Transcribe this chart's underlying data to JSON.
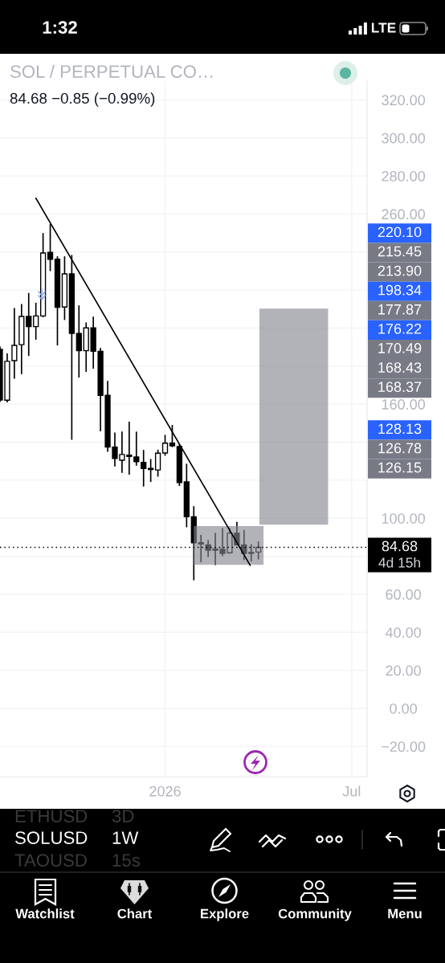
{
  "chart_data": {
    "type": "candlestick",
    "title": "SOL / PERPETUAL CO…",
    "subtitle": "84.68 −0.85 (−0.99%)",
    "x": [
      "2025-07-28",
      "2025-08-04",
      "2025-08-11",
      "2025-08-18",
      "2025-08-25",
      "2025-09-01",
      "2025-09-08",
      "2025-09-15",
      "2025-09-22",
      "2025-09-29",
      "2025-10-06",
      "2025-10-13",
      "2025-10-20",
      "2025-10-27",
      "2025-11-03",
      "2025-11-10",
      "2025-11-17",
      "2025-11-24",
      "2025-12-01",
      "2025-12-08",
      "2025-12-15",
      "2025-12-22",
      "2025-12-29",
      "2026-01-05",
      "2026-01-12",
      "2026-01-19",
      "2026-01-26",
      "2026-02-02",
      "2026-02-09",
      "2026-02-16",
      "2026-02-23",
      "2026-03-02",
      "2026-03-09",
      "2026-03-16",
      "2026-03-23",
      "2026-03-30",
      "2026-04-06"
    ],
    "ohlc": [
      [
        188.8,
        190.0,
        161.5,
        162.2
      ],
      [
        162.1,
        186.3,
        161.3,
        182.5
      ],
      [
        182.9,
        210.2,
        173.7,
        190.9
      ],
      [
        191.3,
        212.3,
        176.1,
        206.1
      ],
      [
        206.1,
        218.1,
        185.7,
        200.8
      ],
      [
        200.8,
        213.0,
        194.2,
        206.4
      ],
      [
        206.4,
        249.6,
        206.0,
        239.5
      ],
      [
        239.8,
        254.3,
        230.3,
        236.2
      ],
      [
        236.2,
        237.4,
        191.2,
        210.9
      ],
      [
        211.1,
        237.4,
        204.6,
        228.5
      ],
      [
        228.5,
        238.1,
        141.6,
        197.2
      ],
      [
        197.2,
        211.6,
        174.3,
        188.1
      ],
      [
        188.1,
        202.6,
        177.3,
        200.1
      ],
      [
        200.1,
        205.7,
        179.0,
        187.8
      ],
      [
        187.8,
        189.2,
        146.1,
        164.6
      ],
      [
        164.6,
        171.9,
        135.3,
        137.4
      ],
      [
        137.4,
        144.7,
        127.6,
        131.4
      ],
      [
        130.5,
        145.3,
        124.2,
        133.5
      ],
      [
        133.2,
        150.4,
        123.3,
        132.5
      ],
      [
        132.2,
        145.2,
        128.0,
        129.7
      ],
      [
        129.4,
        135.6,
        117.0,
        126.2
      ],
      [
        126.2,
        130.8,
        119.4,
        125.6
      ],
      [
        125.4,
        135.7,
        122.2,
        134.2
      ],
      [
        134.3,
        143.5,
        133.2,
        139.5
      ],
      [
        139.5,
        148.7,
        137.7,
        138.1
      ],
      [
        137.7,
        138.5,
        117.3,
        118.8
      ],
      [
        119.1,
        128.3,
        95.6,
        100.8
      ],
      [
        100.8,
        106.0,
        67.7,
        87.1
      ],
      [
        87.1,
        90.9,
        77.2,
        86.5
      ],
      [
        86.0,
        88.1,
        80.0,
        83.2
      ],
      [
        83.9,
        91.9,
        75.7,
        83.2
      ],
      [
        83.6,
        94.5,
        80.4,
        81.5
      ],
      [
        81.8,
        94.5,
        81.8,
        92.1
      ],
      [
        92.1,
        97.7,
        86.0,
        86.0
      ],
      [
        86.0,
        93.5,
        78.3,
        81.5
      ],
      [
        81.5,
        86.0,
        77.6,
        82.0
      ],
      [
        82.2,
        87.4,
        78.7,
        84.68
      ]
    ],
    "color": "#000000",
    "series": [
      {
        "type": "line",
        "x": [
          "2026-04-07",
          "2026-06-13"
        ],
        "values": [
          null,
          null
        ],
        "lower": [
          96.6,
          96.6
        ],
        "upper": [
          210.2,
          210.2
        ],
        "color": "#b2b3b8"
      },
      {
        "type": "line",
        "x": [
          "2026-02-02",
          "2026-04-11"
        ],
        "values": [
          null,
          null
        ],
        "lower": [
          75.5,
          75.5
        ],
        "upper": [
          95.9,
          95.9
        ],
        "color": "#b2b3b8"
      },
      {
        "type": "line",
        "x": [
          "2025-09-01",
          "2026-03-29"
        ],
        "values": [
          268.3,
          75.2
        ],
        "color": "#000000"
      }
    ],
    "ref_lines": [
      {
        "axis": "y",
        "value": 84.68,
        "label": "84.68",
        "color": "#000000",
        "line_style": "dotted"
      }
    ],
    "xlim": [
      "2025-07-28",
      "2026-07-21"
    ],
    "ylim": [
      -36,
      330
    ],
    "xticks": [
      {
        "value": "2026-01-05",
        "label": "2026"
      },
      {
        "value": "2026-07-06",
        "label": "Jul"
      }
    ],
    "yticks": [
      {
        "value": -20,
        "label": "−20.00"
      },
      {
        "value": 0,
        "label": "0.00"
      },
      {
        "value": 20,
        "label": "20.00"
      },
      {
        "value": 40,
        "label": "40.00"
      },
      {
        "value": 60,
        "label": "60.00"
      },
      {
        "value": 80,
        "label": null
      },
      {
        "value": 100,
        "label": "100.00"
      },
      {
        "value": 120,
        "label": null
      },
      {
        "value": 140,
        "label": null
      },
      {
        "value": 160,
        "label": "160.00"
      },
      {
        "value": 180,
        "label": null
      },
      {
        "value": 200,
        "label": null
      },
      {
        "value": 220,
        "label": null
      },
      {
        "value": 240,
        "label": null
      },
      {
        "value": 260,
        "label": "260.00"
      },
      {
        "value": 280,
        "label": "280.00"
      },
      {
        "value": 300,
        "label": "300.00"
      },
      {
        "value": 320,
        "label": "320.00"
      }
    ],
    "grid": true,
    "annotations": [
      "4d 15h",
      "220.10",
      "215.45",
      "213.90",
      "198.34",
      "177.87",
      "176.22",
      "170.49",
      "168.43",
      "168.37",
      "128.13",
      "126.78",
      "126.15",
      "1:32",
      "LTE",
      "ETHUSD",
      "3D",
      "SOLUSD",
      "1W",
      "TAOUSD",
      "15s",
      "Watchlist",
      "Chart",
      "Explore",
      "Community",
      "Menu"
    ]
  }
}
